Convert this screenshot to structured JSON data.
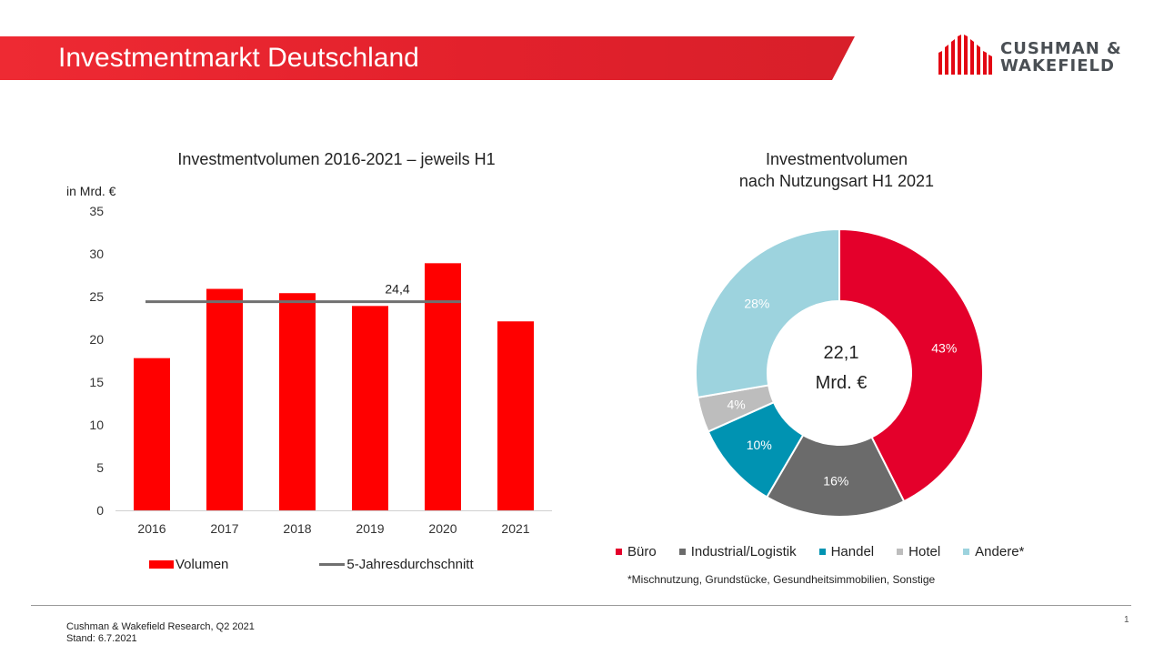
{
  "slide": {
    "title": "Investmentmarkt Deutschland",
    "brand_line1": "CUSHMAN &",
    "brand_line2": "WAKEFIELD",
    "footnote": "*Mischnutzung, Grundstücke, Gesundheitsimmobilien,  Sonstige",
    "source_line1": "Cushman & Wakefield Research, Q2 2021",
    "source_line2": "Stand: 6.7.2021",
    "page_number": "1",
    "colors": {
      "brand_red": "#e30613",
      "banner": "#e8202e",
      "logo_gray": "#4a4f54"
    }
  },
  "chart_data": [
    {
      "type": "bar",
      "title": "Investmentvolumen  2016-2021 – jeweils H1",
      "ylabel": "in Mrd. €",
      "xlabel": "",
      "categories": [
        "2016",
        "2017",
        "2018",
        "2019",
        "2020",
        "2021"
      ],
      "series": [
        {
          "name": "Volumen",
          "values": [
            17.8,
            25.9,
            25.4,
            23.9,
            28.9,
            22.1
          ],
          "color": "#ff0000"
        }
      ],
      "reference_line": {
        "name": "5-Jahresdurchschnitt",
        "value": 24.4,
        "label": "24,4",
        "from": "2016",
        "to": "2020",
        "color": "#707070"
      },
      "ylim": [
        0,
        35
      ],
      "yticks": [
        "0",
        "5",
        "10",
        "15",
        "20",
        "25",
        "30",
        "35"
      ],
      "grid": false,
      "legend_position": "bottom"
    },
    {
      "type": "pie",
      "style": "doughnut",
      "title_line1": "Investmentvolumen",
      "title_line2": "nach Nutzungsart  H1 2021",
      "center_value": "22,1",
      "center_unit": "Mrd. €",
      "slices": [
        {
          "label": "Büro",
          "value": 43,
          "text": "43%",
          "color": "#e4002b"
        },
        {
          "label": "Industrial/Logistik",
          "value": 16,
          "text": "16%",
          "color": "#6b6b6b"
        },
        {
          "label": "Handel",
          "value": 10,
          "text": "10%",
          "color": "#0093b2"
        },
        {
          "label": "Hotel",
          "value": 4,
          "text": "4%",
          "color": "#bdbdbd"
        },
        {
          "label": "Andere*",
          "value": 28,
          "text": "28%",
          "color": "#9dd3de"
        }
      ],
      "legend_position": "bottom"
    }
  ]
}
